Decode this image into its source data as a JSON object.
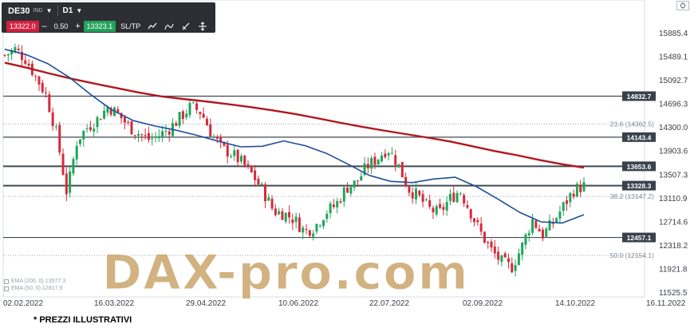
{
  "toolbar": {
    "symbol": "DE30",
    "badge": "IND",
    "timeframe": "D1",
    "sell_price": "13322.0",
    "minus": "–",
    "volume": "0.50",
    "plus": "+",
    "buy_price": "13323.1",
    "sltp": "SL/TP"
  },
  "watermark": "DAX-pro.com",
  "indicators": [
    "EMA (200, 0)  13577.3",
    "EMA (50, 0)  12817.9"
  ],
  "footnote": "* PREZZI ILLUSTRATIVI",
  "colors": {
    "ema200": "#b0181f",
    "ema50": "#1f4e98",
    "bull": "#1ea65a",
    "bear": "#d62a3a",
    "level_line": "#404952",
    "fib_line": "#9fa6b0",
    "level_label_bg": "#39424c",
    "watermark": "#c9a46a"
  },
  "chart_data": {
    "type": "line",
    "instrument": "DE30",
    "timeframe": "D1",
    "price_axis": [
      "15885.4",
      "15489.1",
      "15092.7",
      "14696.3",
      "14300.0",
      "13903.6",
      "13507.3",
      "13110.9",
      "12714.6",
      "12318.2",
      "11921.8",
      "11525.5"
    ],
    "ylim": [
      11525.5,
      15885.4
    ],
    "time_axis": [
      "02.02.2022",
      "16.03.2022",
      "29.04.2022",
      "10.06.2022",
      "22.07.2022",
      "02.09.2022",
      "14.10.2022",
      "16.11.2022"
    ],
    "horizontal_levels": [
      {
        "value": 14832.7,
        "label": "14832.7"
      },
      {
        "value": 14143.4,
        "label": "14143.4"
      },
      {
        "value": 13653.6,
        "label": "13653.6"
      },
      {
        "value": 13328.3,
        "label": "13328.3"
      },
      {
        "value": 12457.1,
        "label": "12457.1"
      }
    ],
    "fib_levels": [
      {
        "value": 14362.5,
        "label": "23.6 (14362.5)"
      },
      {
        "value": 13147.2,
        "label": "38.2 (13147.2)"
      },
      {
        "value": 12154.1,
        "label": "50.0 (12154.1)"
      }
    ],
    "ema200": [
      15395,
      15310,
      15215,
      15125,
      15045,
      14970,
      14895,
      14830,
      14785,
      14745,
      14700,
      14650,
      14595,
      14535,
      14465,
      14390,
      14320,
      14255,
      14195,
      14135,
      14070,
      13990,
      13910,
      13840,
      13760,
      13690,
      13630
    ],
    "ema50": [
      15620,
      15530,
      15380,
      15150,
      14860,
      14600,
      14420,
      14330,
      14260,
      14170,
      14070,
      13980,
      13990,
      14080,
      14000,
      13870,
      13690,
      13500,
      13400,
      13380,
      13440,
      13470,
      13310,
      13100,
      12880,
      12720,
      12700,
      12840
    ],
    "close": [
      15520,
      15620,
      15460,
      15160,
      14850,
      14200,
      13200,
      14100,
      14310,
      14450,
      14660,
      14520,
      14320,
      14200,
      14100,
      14180,
      14300,
      14480,
      14660,
      14560,
      14200,
      13950,
      13860,
      13700,
      13500,
      13230,
      12900,
      12860,
      12760,
      12560,
      12640,
      12880,
      13000,
      13290,
      13380,
      13650,
      13780,
      13960,
      13700,
      13280,
      13140,
      12940,
      12860,
      13100,
      13250,
      12900,
      12540,
      12250,
      12050,
      11950,
      12300,
      12760,
      12500,
      12700,
      12980,
      13250,
      13325
    ]
  }
}
